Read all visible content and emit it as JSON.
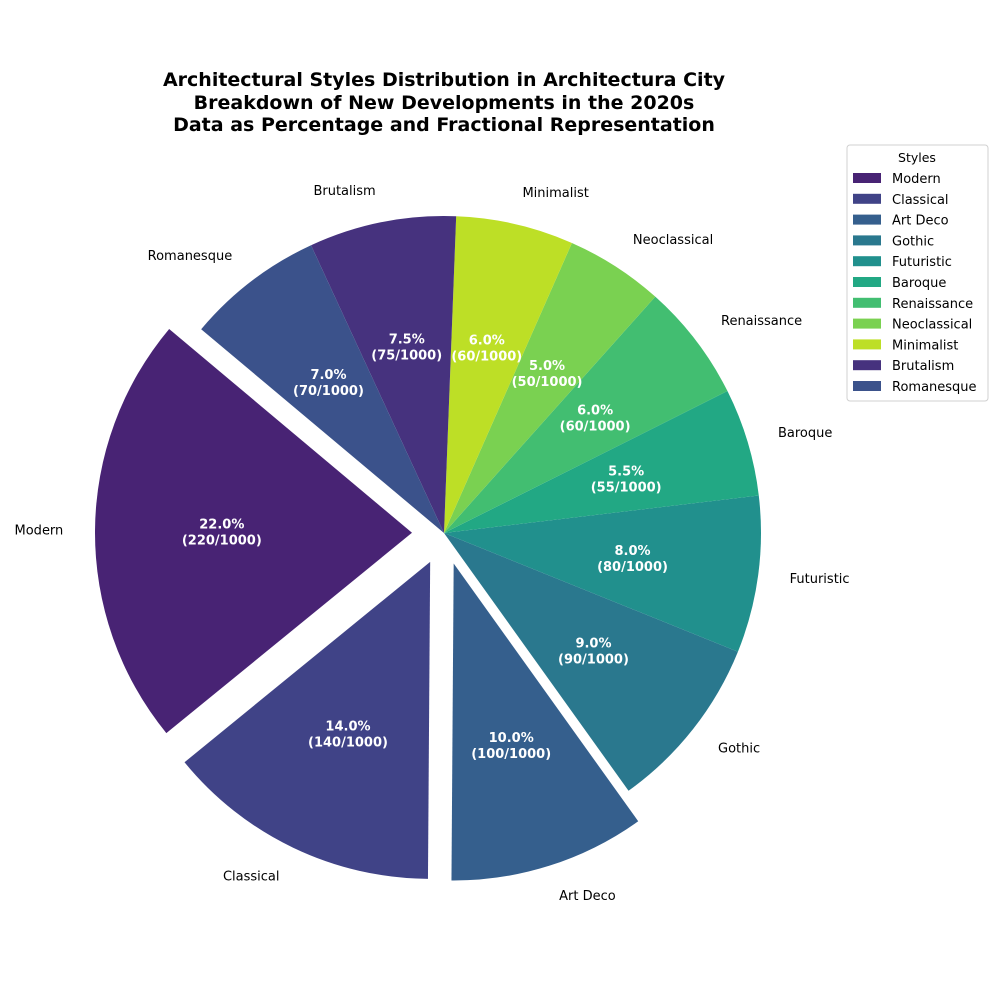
{
  "chart_data": {
    "type": "pie",
    "title": [
      "Architectural Styles Distribution in Architectura City",
      "Breakdown of New Developments in the 2020s",
      "Data as Percentage and Fractional Representation"
    ],
    "total": 1000,
    "categories": [
      "Modern",
      "Classical",
      "Art Deco",
      "Gothic",
      "Futuristic",
      "Baroque",
      "Renaissance",
      "Neoclassical",
      "Minimalist",
      "Brutalism",
      "Romanesque"
    ],
    "values": [
      220,
      140,
      100,
      90,
      80,
      55,
      60,
      50,
      60,
      75,
      70
    ],
    "percent_labels": [
      "22.0%",
      "14.0%",
      "10.0%",
      "9.0%",
      "8.0%",
      "5.5%",
      "6.0%",
      "5.0%",
      "6.0%",
      "7.5%",
      "7.0%"
    ],
    "fraction_labels": [
      "(220/1000)",
      "(140/1000)",
      "(100/1000)",
      "(90/1000)",
      "(80/1000)",
      "(55/1000)",
      "(60/1000)",
      "(50/1000)",
      "(60/1000)",
      "(75/1000)",
      "(70/1000)"
    ],
    "colors": [
      "#482374",
      "#404387",
      "#355f8d",
      "#2a788e",
      "#21908d",
      "#22a884",
      "#42be71",
      "#7ad151",
      "#bddf26",
      "#46327e",
      "#3b528b"
    ],
    "exploded": [
      true,
      true,
      true,
      false,
      false,
      false,
      false,
      false,
      false,
      false,
      false
    ],
    "start_angle_deg": 140,
    "direction": "counterclockwise",
    "legend": {
      "title": "Styles",
      "position": "top-right"
    }
  }
}
